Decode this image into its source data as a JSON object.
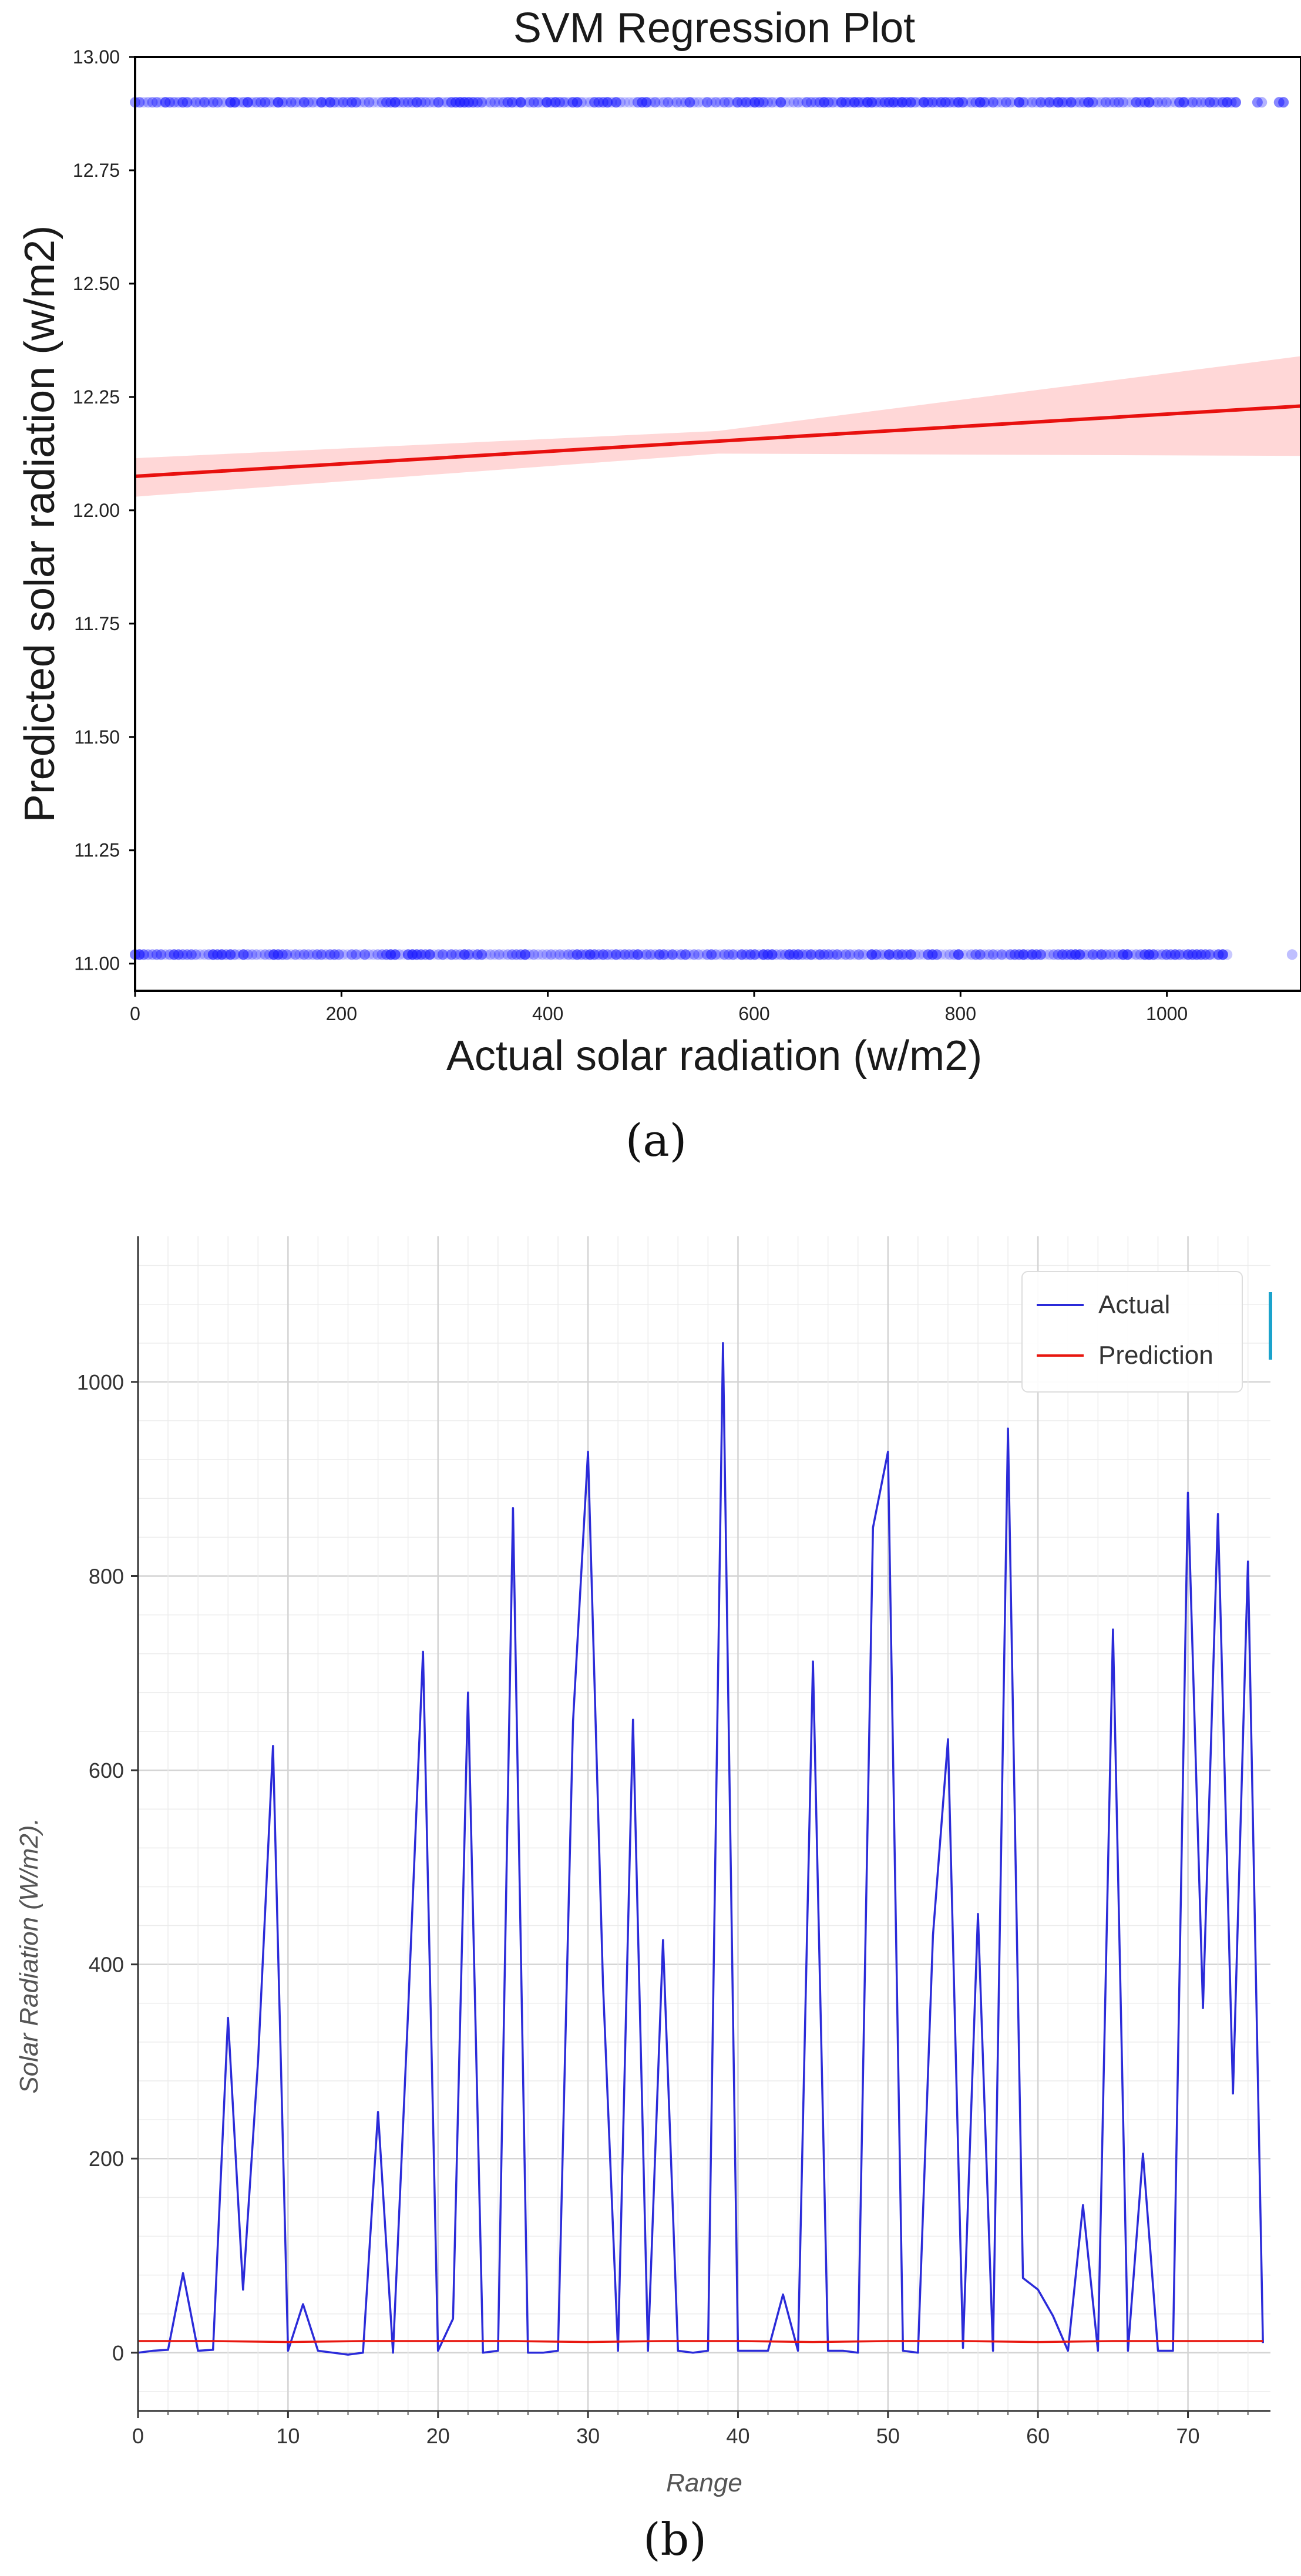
{
  "chart_data": [
    {
      "type": "scatter",
      "panel_label": "(a)",
      "title": "SVM Regression Plot",
      "xlabel": "Actual solar radiation (w/m2)",
      "ylabel": "Predicted solar radiation (w/m2)",
      "xlim": [
        0,
        1130
      ],
      "ylim": [
        10.94,
        13.0
      ],
      "xticks": [
        0,
        200,
        400,
        600,
        800,
        1000
      ],
      "yticks": [
        11.0,
        11.25,
        11.5,
        11.75,
        12.0,
        12.25,
        12.5,
        12.75,
        13.0
      ],
      "ytick_labels": [
        "11.00",
        "11.25",
        "11.50",
        "11.75",
        "12.00",
        "12.25",
        "12.50",
        "12.75",
        "13.00"
      ],
      "xtick_labels": [
        "0",
        "200",
        "400",
        "600",
        "800",
        "1000"
      ],
      "series": [
        {
          "name": "points",
          "color": "#1a1aff",
          "levels": [
            12.9,
            11.02
          ],
          "x_range": [
            0,
            1128
          ],
          "description_values": "binary predictions at 12.90 and 11.02 across actual 0-1128"
        },
        {
          "name": "regression fit",
          "color": "#e8110f",
          "x": [
            0,
            1130
          ],
          "y": [
            12.075,
            12.23
          ]
        },
        {
          "name": "confidence band",
          "color": "#ffc9c9",
          "x": [
            0,
            565,
            1130
          ],
          "upper": [
            12.115,
            12.175,
            12.34
          ],
          "lower": [
            12.03,
            12.125,
            12.12
          ]
        }
      ]
    },
    {
      "type": "line",
      "panel_label": "(b)",
      "title": "",
      "xlabel": "Range",
      "ylabel": "Solar Radiation (W/m2).",
      "xlim": [
        0,
        75.5
      ],
      "ylim": [
        -60,
        1150
      ],
      "xticks": [
        0,
        10,
        20,
        30,
        40,
        50,
        60,
        70
      ],
      "xtick_labels": [
        "0",
        "10",
        "20",
        "30",
        "40",
        "50",
        "60",
        "70"
      ],
      "yticks": [
        0,
        200,
        400,
        600,
        800,
        1000
      ],
      "ytick_labels": [
        "0",
        "200",
        "400",
        "600",
        "800",
        "1000"
      ],
      "legend": {
        "position": "top-right",
        "entries": [
          "Actual",
          "Prediction"
        ]
      },
      "series": [
        {
          "name": "Actual",
          "color": "#2b2bd9",
          "x": [
            0,
            1,
            2,
            3,
            4,
            5,
            6,
            7,
            8,
            9,
            10,
            11,
            12,
            13,
            14,
            15,
            16,
            17,
            18,
            19,
            20,
            21,
            22,
            23,
            24,
            25,
            26,
            27,
            28,
            29,
            30,
            31,
            32,
            33,
            34,
            35,
            36,
            37,
            38,
            39,
            40,
            41,
            42,
            43,
            44,
            45,
            46,
            47,
            48,
            49,
            50,
            51,
            52,
            53,
            54,
            55,
            56,
            57,
            58,
            59,
            60,
            61,
            62,
            63,
            64,
            65,
            66,
            67,
            68,
            69,
            70,
            71,
            72,
            73,
            74,
            75
          ],
          "values": [
            0,
            2,
            3,
            82,
            2,
            3,
            345,
            65,
            300,
            625,
            2,
            50,
            2,
            0,
            -2,
            0,
            248,
            0,
            350,
            722,
            2,
            35,
            680,
            0,
            2,
            870,
            0,
            0,
            2,
            650,
            928,
            380,
            2,
            652,
            2,
            425,
            2,
            0,
            2,
            1040,
            2,
            2,
            2,
            60,
            2,
            712,
            2,
            2,
            0,
            850,
            928,
            2,
            0,
            430,
            632,
            5,
            452,
            2,
            952,
            77,
            65,
            38,
            2,
            152,
            2,
            745,
            2,
            205,
            2,
            2,
            886,
            355,
            864,
            267,
            815,
            10
          ]
        },
        {
          "name": "Prediction",
          "color": "#e8170f",
          "x": [
            0,
            5,
            10,
            15,
            20,
            25,
            30,
            35,
            40,
            45,
            50,
            55,
            60,
            65,
            70,
            75
          ],
          "values": [
            12,
            12,
            11,
            12,
            12,
            12,
            11,
            12,
            12,
            11,
            12,
            12,
            11,
            12,
            12,
            12
          ]
        }
      ]
    }
  ]
}
